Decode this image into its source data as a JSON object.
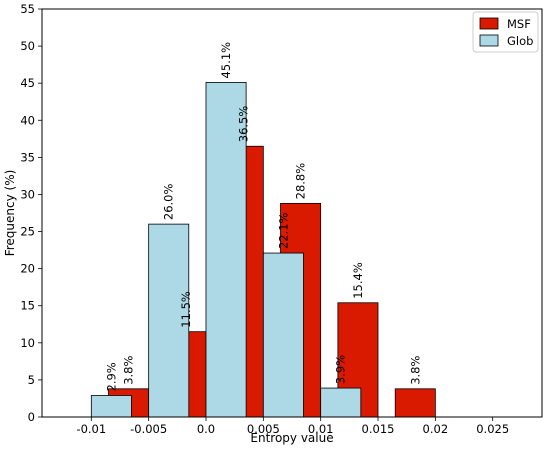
{
  "chart_data": {
    "type": "bar",
    "xlabel": "Entropy value",
    "ylabel": "Frequency (%)",
    "ylim": [
      0,
      55
    ],
    "xlim": [
      -0.0143,
      0.0293
    ],
    "yticks": [
      "0",
      "5",
      "10",
      "15",
      "20",
      "25",
      "30",
      "35",
      "40",
      "45",
      "50",
      "55"
    ],
    "xticks": [
      "-0.01",
      "-0.005",
      "0.0",
      "0.005",
      "0.01",
      "0.015",
      "0.02",
      "0.025"
    ],
    "xtick_values": [
      -0.01,
      -0.005,
      0.0,
      0.005,
      0.01,
      0.015,
      0.02,
      0.025
    ],
    "grid": false,
    "legend_position": "top-right",
    "series": [
      {
        "name": "MSF",
        "color": "#d91a00",
        "x": [
          -0.005,
          0.0,
          0.005,
          0.01,
          0.015,
          0.02
        ],
        "values": [
          3.8,
          11.5,
          36.5,
          28.8,
          15.4,
          3.8
        ],
        "labels": [
          "3.8%",
          "11.5%",
          "36.5%",
          "28.8%",
          "15.4%",
          "3.8%"
        ]
      },
      {
        "name": "Glob",
        "color": "#add8e6",
        "x": [
          -0.01,
          -0.005,
          0.0,
          0.005,
          0.01
        ],
        "values": [
          2.9,
          26.0,
          45.1,
          22.1,
          3.9
        ],
        "labels": [
          "2.9%",
          "26.0%",
          "45.1%",
          "22.1%",
          "3.9%"
        ]
      }
    ]
  }
}
